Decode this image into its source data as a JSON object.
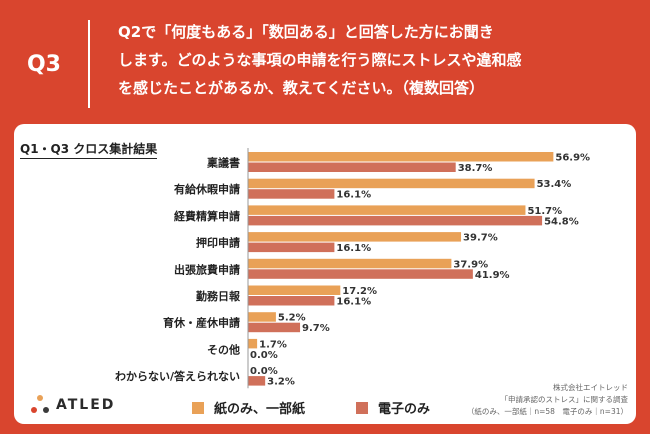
{
  "header": {
    "q_label": "Q3",
    "question_lines": [
      "Q2で「何度もある」「数回ある」と回答した方にお聞き",
      "します。どのような事項の申請を行う際にストレスや違和感",
      "を感じたことがあるか、教えてください。（複数回答）"
    ]
  },
  "colors": {
    "background": "#d9452e",
    "series_paper": "#e9a157",
    "series_electronic": "#d0705a",
    "panel": "#ffffff"
  },
  "chart_data": {
    "type": "bar",
    "orientation": "horizontal",
    "title": "Q1・Q3 クロス集計結果",
    "categories": [
      "稟議書",
      "有給休暇申請",
      "経費精算申請",
      "押印申請",
      "出張旅費申請",
      "勤務日報",
      "育休・産休申請",
      "その他",
      "わからない/答えられない"
    ],
    "series": [
      {
        "name": "紙のみ、一部紙",
        "values": [
          56.9,
          53.4,
          51.7,
          39.7,
          37.9,
          17.2,
          5.2,
          1.7,
          0.0
        ],
        "color": "#e9a157"
      },
      {
        "name": "電子のみ",
        "values": [
          38.7,
          16.1,
          54.8,
          16.1,
          41.9,
          16.1,
          9.7,
          0.0,
          3.2
        ],
        "color": "#d0705a"
      }
    ],
    "value_suffix": "%",
    "xlim": [
      0,
      60
    ],
    "grid": false,
    "legend_position": "bottom"
  },
  "legend": {
    "paper": "紙のみ、一部紙",
    "electronic": "電子のみ"
  },
  "logo": {
    "text": "ATLED",
    "icon": "atled-logo-icon"
  },
  "credit": {
    "lines": [
      "株式会社エイトレッド",
      "「申請承認のストレス」に関する調査",
      "（紙のみ、一部紙｜n=58　電子のみ｜n=31）"
    ]
  }
}
